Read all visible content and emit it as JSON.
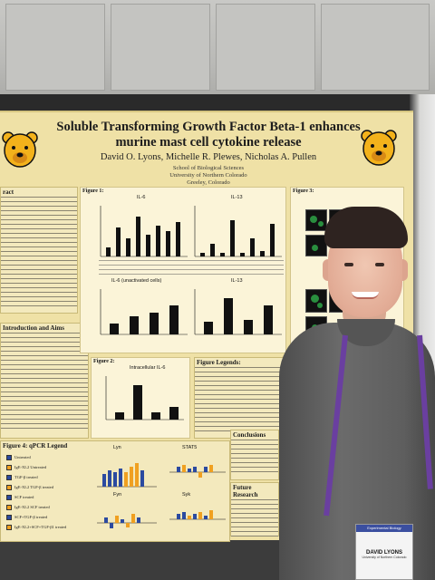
{
  "poster": {
    "title_line1": "Soluble Transforming Growth Factor Beta-1 enhances",
    "title_line2": "murine mast cell cytokine release",
    "authors": "David O. Lyons, Michelle R. Plewes, Nicholas A. Pullen",
    "affiliation_line1": "School of Biological Sciences",
    "affiliation_line2": "University of Northern Colorado",
    "affiliation_line3": "Greeley, Colorado",
    "sections": {
      "abstract": "ract",
      "intro": "Introduction and Aims",
      "figure1": "Figure 1:",
      "figure2": "Figure 2:",
      "figure3": "Figure 3:",
      "figure4": "Figure 4:  qPCR  Legend",
      "legends": "Figure Legends:",
      "conclusions": "Conclusions",
      "future": "Future Research"
    },
    "charts": {
      "il6": "IL-6",
      "il13": "IL-13",
      "il6_unact": "IL-6 (unactivated cells)",
      "il13_b": "IL-13",
      "intracellular": "Intracellular IL-6",
      "lyn": "Lyn",
      "stat5": "STAT5",
      "fyn": "Fyn",
      "syk": "Syk"
    },
    "legend_items": [
      "Untreated",
      "IgE-XL2 Untreated",
      "TGF-β treated",
      "IgE-XL2 TGF-β treated",
      "SCF treated",
      "IgE-XL2 SCF treated",
      "SCF+TGF-β treated",
      "IgE-XL2+SCF+TGF-β1 treated"
    ]
  },
  "badge": {
    "header": "Experimental Biology",
    "name": "DAVID LYONS",
    "affiliation": "University of Northern Colorado"
  },
  "colors": {
    "poster_bg": "#efe1a6",
    "bear_gold": "#f3b21b",
    "lanyard": "#6a3fa0",
    "shirt": "#5e5e5e"
  }
}
